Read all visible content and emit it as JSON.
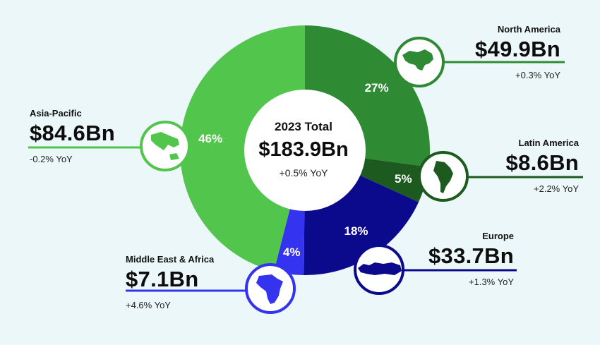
{
  "total": {
    "title": "2023 Total",
    "value": "$183.9Bn",
    "yoy": "+0.5% YoY"
  },
  "regions": [
    {
      "name": "North America",
      "value": "$49.9Bn",
      "yoy": "+0.3% YoY",
      "share_label": "27%"
    },
    {
      "name": "Latin America",
      "value": "$8.6Bn",
      "yoy": "+2.2% YoY",
      "share_label": "5%"
    },
    {
      "name": "Europe",
      "value": "$33.7Bn",
      "yoy": "+1.3% YoY",
      "share_label": "18%"
    },
    {
      "name": "Middle East & Africa",
      "value": "$7.1Bn",
      "yoy": "+4.6% YoY",
      "share_label": "4%"
    },
    {
      "name": "Asia-Pacific",
      "value": "$84.6Bn",
      "yoy": "-0.2% YoY",
      "share_label": "46%"
    }
  ],
  "chart_data": {
    "type": "pie",
    "title": "2023 Total",
    "categories": [
      "North America",
      "Latin America",
      "Europe",
      "Middle East & Africa",
      "Asia-Pacific"
    ],
    "values": [
      49.9,
      8.6,
      33.7,
      7.1,
      84.6
    ],
    "percent": [
      27,
      5,
      18,
      4,
      46
    ],
    "unit": "$Bn",
    "colors": [
      "#2f8a34",
      "#1c5a1f",
      "#0b0a8c",
      "#3434f0",
      "#52c54c"
    ],
    "line_colors": [
      "#2f8a34",
      "#1c5a1f",
      "#0b0a8c",
      "#3434f0",
      "#52c54c"
    ]
  },
  "icons": [
    "north-america-map-icon",
    "south-america-map-icon",
    "europe-map-icon",
    "africa-map-icon",
    "asia-pacific-map-icon"
  ]
}
